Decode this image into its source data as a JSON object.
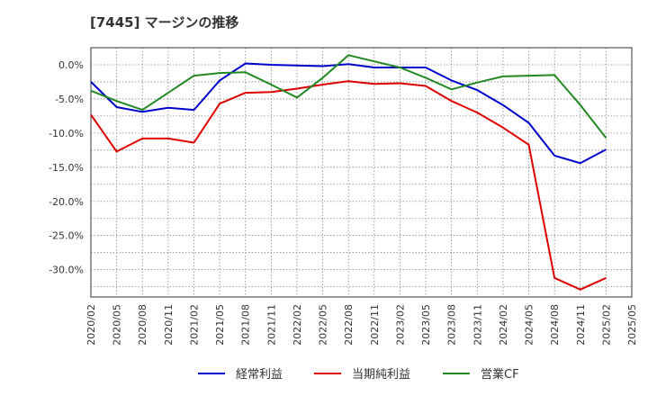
{
  "chart_data": {
    "type": "line",
    "title": "[7445]  マージンの推移",
    "xlabel": "",
    "ylabel": "",
    "ylim": [
      -34.0,
      2.5
    ],
    "yticks": [
      0,
      -5,
      -10,
      -15,
      -20,
      -25,
      -30
    ],
    "ytick_labels": [
      "0.0%",
      "-5.0%",
      "-10.0%",
      "-15.0%",
      "-20.0%",
      "-25.0%",
      "-30.0%"
    ],
    "grid": true,
    "legend_position": "bottom",
    "x": [
      "2020/02",
      "2020/05",
      "2020/08",
      "2020/11",
      "2021/02",
      "2021/05",
      "2021/08",
      "2021/11",
      "2022/02",
      "2022/05",
      "2022/08",
      "2022/11",
      "2023/02",
      "2023/05",
      "2023/08",
      "2023/11",
      "2024/02",
      "2024/05",
      "2024/08",
      "2024/11",
      "2025/02",
      "2025/05"
    ],
    "series": [
      {
        "name": "経常利益",
        "color": "#0000cc",
        "values": [
          -2.5,
          -6.2,
          -6.9,
          -6.3,
          -6.6,
          -2.3,
          0.2,
          0.0,
          -0.1,
          -0.2,
          0.1,
          -0.4,
          -0.4,
          -0.4,
          -2.3,
          -3.7,
          -5.9,
          -8.5,
          -13.3,
          -14.4,
          -12.4,
          null
        ]
      },
      {
        "name": "当期純利益",
        "color": "#dd0000",
        "values": [
          -7.3,
          -12.7,
          -10.8,
          -10.8,
          -11.4,
          -5.7,
          -4.1,
          -4.0,
          -3.5,
          -2.9,
          -2.4,
          -2.8,
          -2.7,
          -3.1,
          -5.3,
          -7.0,
          -9.2,
          -11.7,
          -31.2,
          -32.9,
          -31.2,
          null
        ]
      },
      {
        "name": "営業CF",
        "color": "#228822",
        "values": [
          -3.8,
          -5.3,
          -6.6,
          -4.1,
          -1.6,
          -1.2,
          -1.1,
          -2.9,
          -4.8,
          -1.9,
          1.4,
          0.5,
          -0.4,
          -1.9,
          -3.6,
          -2.6,
          -1.7,
          -1.6,
          -1.5,
          -5.9,
          -10.7,
          null
        ]
      }
    ]
  }
}
